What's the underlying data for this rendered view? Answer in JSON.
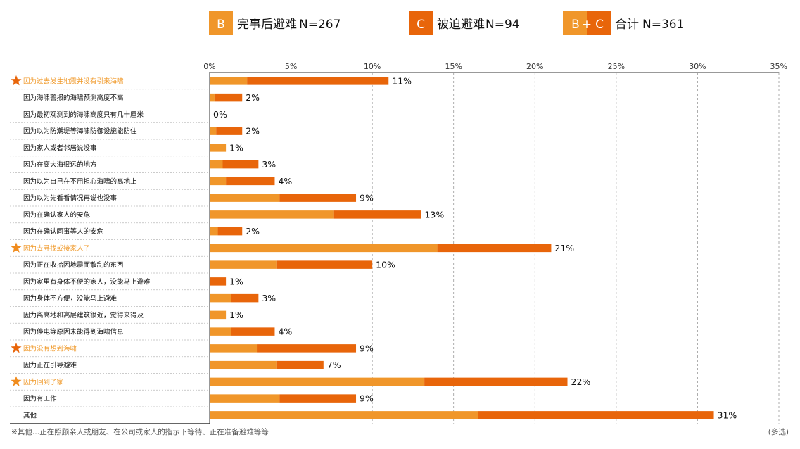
{
  "legend": [
    {
      "badge": "B",
      "label": "完事后避难",
      "n": "N=267",
      "color": "#f0962a"
    },
    {
      "badge": "C",
      "label": "被迫避难",
      "n": "N=94",
      "color": "#e8650a"
    },
    {
      "badge_left": "B",
      "badge_plus": "+",
      "badge_right": "C",
      "label": "合计",
      "n": "N=361"
    }
  ],
  "footnote": "※其他…正在照顾亲人或朋友、在公司或家人的指示下等待、正在准备避难等等",
  "multi_select": "(多选)",
  "colors": {
    "B": "#f0962a",
    "C": "#e8650a",
    "highlight_text": "#f09a2b",
    "star": "#f08c1e",
    "star_dark": "#e8650a"
  },
  "chart_data": {
    "type": "bar",
    "orientation": "horizontal",
    "stacked": true,
    "xlim": [
      0,
      35
    ],
    "xticks": [
      "0%",
      "5%",
      "10%",
      "15%",
      "20%",
      "25%",
      "30%",
      "35%"
    ],
    "grid": true,
    "categories": [
      "因为过去发生地震并没有引来海啸",
      "因为海啸警报的海啸预测高度不高",
      "因为最初观测到的海啸高度只有几十厘米",
      "因为以为防潮堤等海啸防御设施能防住",
      "因为家人或者邻居说没事",
      "因为在离大海很远的地方",
      "因为以为自己在不用担心海啸的高地上",
      "因为以为先看看情况再说也没事",
      "因为在确认家人的安危",
      "因为在确认同事等人的安危",
      "因为去寻找或接家人了",
      "因为正在收拾因地震而散乱的东西",
      "因为家里有身体不便的家人，没能马上避难",
      "因为身体不方便，没能马上避难",
      "因为离高地和高层建筑很近，觉得来得及",
      "因为停电等原因未能得到海啸信息",
      "因为没有想到海啸",
      "因为正在引导避难",
      "因为回到了家",
      "因为有工作",
      "其他"
    ],
    "highlighted": [
      true,
      false,
      false,
      false,
      false,
      false,
      false,
      false,
      false,
      false,
      true,
      false,
      false,
      false,
      false,
      false,
      true,
      false,
      true,
      false,
      false
    ],
    "series": [
      {
        "name": "B",
        "values": [
          2.3,
          0.3,
          0.0,
          0.4,
          1.0,
          0.8,
          1.0,
          4.3,
          7.6,
          0.5,
          14.0,
          4.1,
          0.0,
          1.3,
          1.0,
          1.3,
          2.9,
          4.1,
          13.2,
          4.3,
          16.5
        ]
      },
      {
        "name": "C",
        "values": [
          8.7,
          1.7,
          0.0,
          1.6,
          0.0,
          2.2,
          3.0,
          4.7,
          5.4,
          1.5,
          7.0,
          5.9,
          1.0,
          1.7,
          0.0,
          2.7,
          6.1,
          2.9,
          8.8,
          4.7,
          14.5
        ]
      }
    ],
    "totals": [
      "11%",
      "2%",
      "0%",
      "2%",
      "1%",
      "3%",
      "4%",
      "9%",
      "13%",
      "2%",
      "21%",
      "10%",
      "1%",
      "3%",
      "1%",
      "4%",
      "9%",
      "7%",
      "22%",
      "9%",
      "31%"
    ]
  }
}
